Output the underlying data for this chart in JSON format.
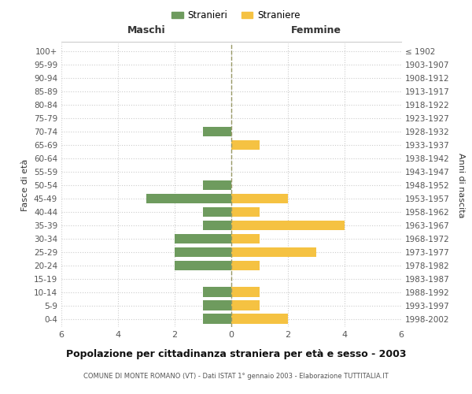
{
  "age_groups": [
    "0-4",
    "5-9",
    "10-14",
    "15-19",
    "20-24",
    "25-29",
    "30-34",
    "35-39",
    "40-44",
    "45-49",
    "50-54",
    "55-59",
    "60-64",
    "65-69",
    "70-74",
    "75-79",
    "80-84",
    "85-89",
    "90-94",
    "95-99",
    "100+"
  ],
  "birth_years": [
    "1998-2002",
    "1993-1997",
    "1988-1992",
    "1983-1987",
    "1978-1982",
    "1973-1977",
    "1968-1972",
    "1963-1967",
    "1958-1962",
    "1953-1957",
    "1948-1952",
    "1943-1947",
    "1938-1942",
    "1933-1937",
    "1928-1932",
    "1923-1927",
    "1918-1922",
    "1913-1917",
    "1908-1912",
    "1903-1907",
    "≤ 1902"
  ],
  "males": [
    1,
    1,
    1,
    0,
    2,
    2,
    2,
    1,
    1,
    3,
    1,
    0,
    0,
    0,
    1,
    0,
    0,
    0,
    0,
    0,
    0
  ],
  "females": [
    2,
    1,
    1,
    0,
    1,
    3,
    1,
    4,
    1,
    2,
    0,
    0,
    0,
    1,
    0,
    0,
    0,
    0,
    0,
    0,
    0
  ],
  "male_color": "#6e9b5e",
  "female_color": "#f5c242",
  "title": "Popolazione per cittadinanza straniera per età e sesso - 2003",
  "subtitle": "COMUNE DI MONTE ROMANO (VT) - Dati ISTAT 1° gennaio 2003 - Elaborazione TUTTITALIA.IT",
  "label_maschi": "Maschi",
  "label_femmine": "Femmine",
  "ylabel_left": "Fasce di età",
  "ylabel_right": "Anni di nascita",
  "legend_male": "Stranieri",
  "legend_female": "Straniere",
  "xlim": 6,
  "background_color": "#ffffff",
  "grid_color": "#cccccc"
}
